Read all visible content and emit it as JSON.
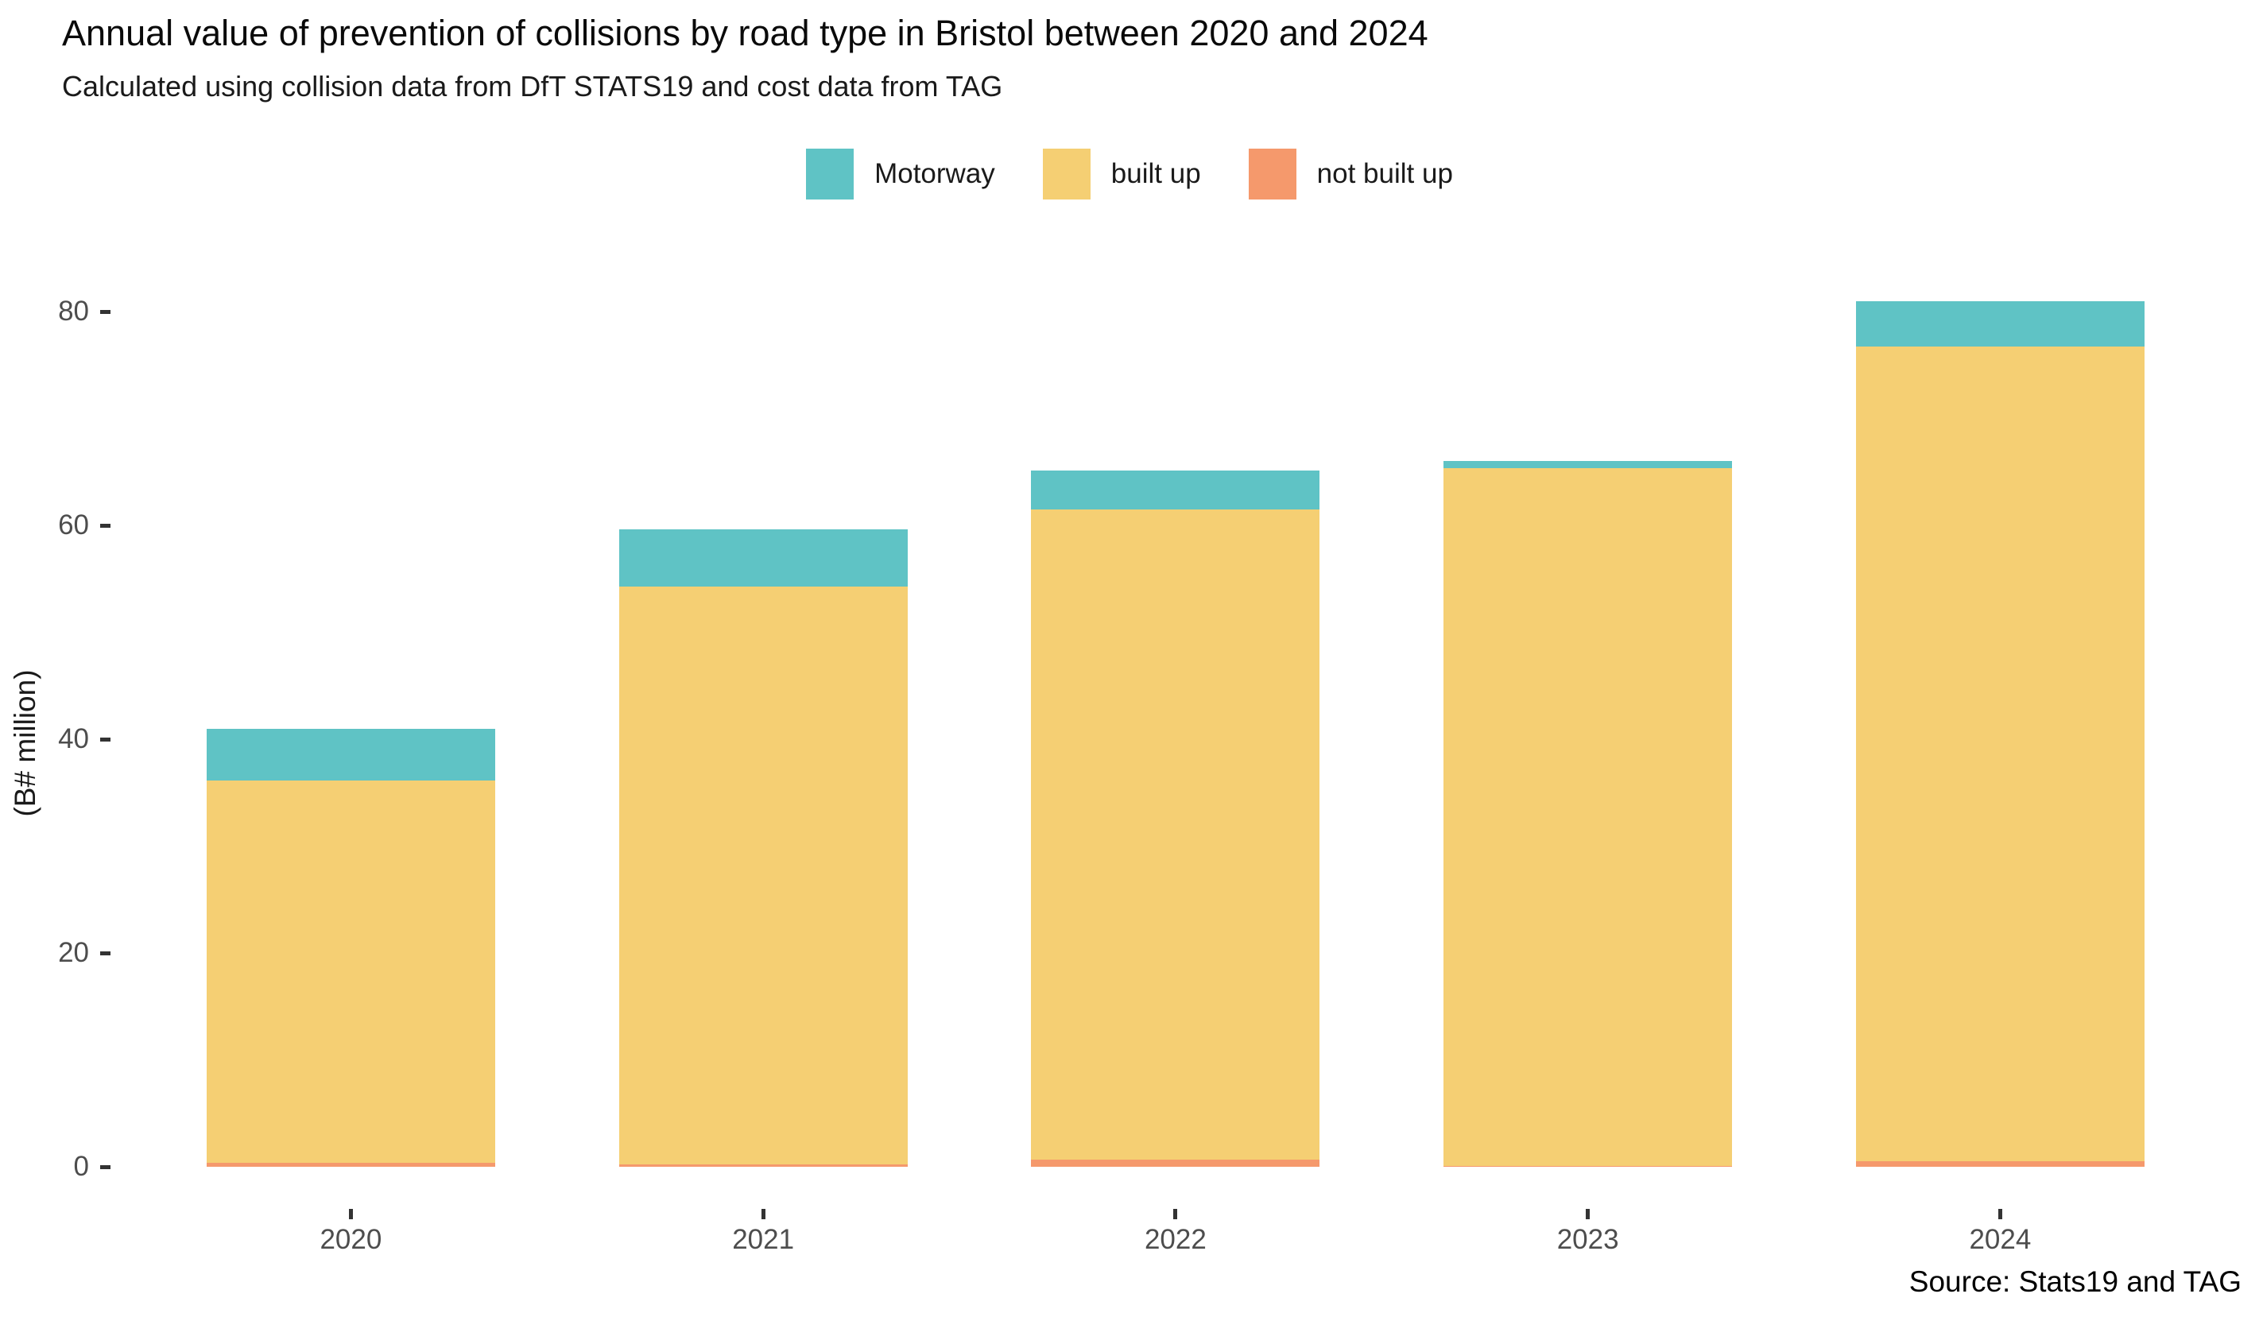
{
  "header": {
    "title": "Annual value of prevention of collisions by road type in Bristol between 2020 and 2024",
    "subtitle": "Calculated using collision data from DfT STATS19 and cost data from TAG"
  },
  "legend": {
    "position": "top-center",
    "items": [
      {
        "label": "Motorway",
        "color": "#5FC3C5"
      },
      {
        "label": "built up",
        "color": "#F5CF73"
      },
      {
        "label": "not built up",
        "color": "#F5996C"
      }
    ]
  },
  "axes": {
    "y_label": "(B# million)",
    "y_ticks": [
      0,
      20,
      40,
      60,
      80
    ],
    "x_ticks": [
      "2020",
      "2021",
      "2022",
      "2023",
      "2024"
    ]
  },
  "caption": "Source: Stats19 and TAG",
  "chart_data": {
    "type": "bar",
    "stacked": true,
    "title": "Annual value of prevention of collisions by road type in Bristol between 2020 and 2024",
    "subtitle": "Calculated using collision data from DfT STATS19 and cost data from TAG",
    "xlabel": "",
    "ylabel": "(B# million)",
    "ylim": [
      0,
      83
    ],
    "grid": false,
    "legend_position": "top-center",
    "categories": [
      "2020",
      "2021",
      "2022",
      "2023",
      "2024"
    ],
    "series": [
      {
        "name": "not built up",
        "color": "#F5996C",
        "values": [
          0.4,
          0.2,
          0.7,
          0.05,
          0.5
        ]
      },
      {
        "name": "built up",
        "color": "#F5CF73",
        "values": [
          35.7,
          54.1,
          60.8,
          65.3,
          76.2
        ]
      },
      {
        "name": "Motorway",
        "color": "#5FC3C5",
        "values": [
          4.9,
          5.3,
          3.6,
          0.7,
          4.3
        ]
      }
    ],
    "totals": [
      41.0,
      59.6,
      65.1,
      66.1,
      81.0
    ]
  }
}
